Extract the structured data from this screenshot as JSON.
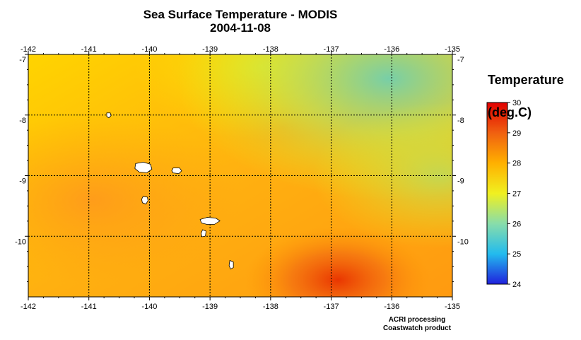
{
  "title": "Sea Surface Temperature - MODIS",
  "date": "2004-11-08",
  "map": {
    "lon_range": [
      -142,
      -135
    ],
    "lat_range": [
      -11,
      -7
    ],
    "lon_ticks": [
      "-142",
      "-141",
      "-140",
      "-139",
      "-138",
      "-137",
      "-136",
      "-135"
    ],
    "lat_ticks": [
      "-7",
      "-8",
      "-9",
      "-10"
    ],
    "grid": true
  },
  "legend": {
    "title_line1": "Temperature",
    "title_line2": "(deg.C)",
    "min": 24,
    "max": 30,
    "ticks": [
      "30",
      "29",
      "28",
      "27",
      "26",
      "25",
      "24"
    ],
    "colors": [
      "#2020dd",
      "#22bbee",
      "#88ddaa",
      "#f0f020",
      "#ffb000",
      "#f06010",
      "#e00000"
    ]
  },
  "islands": [
    {
      "name": "Nuku Hiva",
      "lon": -140.1,
      "lat": -8.87
    },
    {
      "name": "Ua Huka",
      "lon": -139.55,
      "lat": -8.92
    },
    {
      "name": "Ua Pou",
      "lon": -140.07,
      "lat": -9.4
    },
    {
      "name": "Hiva Oa",
      "lon": -139.0,
      "lat": -9.77
    },
    {
      "name": "Tahuata",
      "lon": -139.1,
      "lat": -9.95
    },
    {
      "name": "Fatu Hiva",
      "lon": -138.65,
      "lat": -10.47
    },
    {
      "name": "Eiao",
      "lon": -140.67,
      "lat": -8.0
    }
  ],
  "credits": [
    "ACRI processing",
    "Coastwatch product"
  ]
}
